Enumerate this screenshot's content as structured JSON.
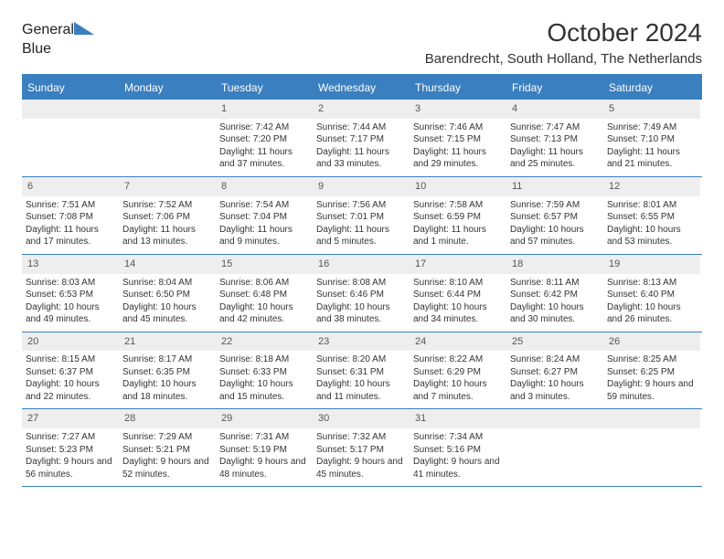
{
  "brand": {
    "general": "General",
    "blue": "Blue"
  },
  "title": {
    "month": "October 2024",
    "location": "Barendrecht, South Holland, The Netherlands"
  },
  "colors": {
    "accent": "#3a7fc0",
    "header_bg": "#3a7fc0",
    "num_bg": "#eeeeee",
    "text": "#333333",
    "brand_gray": "#555555"
  },
  "day_headers": [
    "Sunday",
    "Monday",
    "Tuesday",
    "Wednesday",
    "Thursday",
    "Friday",
    "Saturday"
  ],
  "weeks": [
    [
      {
        "n": "",
        "sr": "",
        "ss": "",
        "dl": ""
      },
      {
        "n": "",
        "sr": "",
        "ss": "",
        "dl": ""
      },
      {
        "n": "1",
        "sr": "Sunrise: 7:42 AM",
        "ss": "Sunset: 7:20 PM",
        "dl": "Daylight: 11 hours and 37 minutes."
      },
      {
        "n": "2",
        "sr": "Sunrise: 7:44 AM",
        "ss": "Sunset: 7:17 PM",
        "dl": "Daylight: 11 hours and 33 minutes."
      },
      {
        "n": "3",
        "sr": "Sunrise: 7:46 AM",
        "ss": "Sunset: 7:15 PM",
        "dl": "Daylight: 11 hours and 29 minutes."
      },
      {
        "n": "4",
        "sr": "Sunrise: 7:47 AM",
        "ss": "Sunset: 7:13 PM",
        "dl": "Daylight: 11 hours and 25 minutes."
      },
      {
        "n": "5",
        "sr": "Sunrise: 7:49 AM",
        "ss": "Sunset: 7:10 PM",
        "dl": "Daylight: 11 hours and 21 minutes."
      }
    ],
    [
      {
        "n": "6",
        "sr": "Sunrise: 7:51 AM",
        "ss": "Sunset: 7:08 PM",
        "dl": "Daylight: 11 hours and 17 minutes."
      },
      {
        "n": "7",
        "sr": "Sunrise: 7:52 AM",
        "ss": "Sunset: 7:06 PM",
        "dl": "Daylight: 11 hours and 13 minutes."
      },
      {
        "n": "8",
        "sr": "Sunrise: 7:54 AM",
        "ss": "Sunset: 7:04 PM",
        "dl": "Daylight: 11 hours and 9 minutes."
      },
      {
        "n": "9",
        "sr": "Sunrise: 7:56 AM",
        "ss": "Sunset: 7:01 PM",
        "dl": "Daylight: 11 hours and 5 minutes."
      },
      {
        "n": "10",
        "sr": "Sunrise: 7:58 AM",
        "ss": "Sunset: 6:59 PM",
        "dl": "Daylight: 11 hours and 1 minute."
      },
      {
        "n": "11",
        "sr": "Sunrise: 7:59 AM",
        "ss": "Sunset: 6:57 PM",
        "dl": "Daylight: 10 hours and 57 minutes."
      },
      {
        "n": "12",
        "sr": "Sunrise: 8:01 AM",
        "ss": "Sunset: 6:55 PM",
        "dl": "Daylight: 10 hours and 53 minutes."
      }
    ],
    [
      {
        "n": "13",
        "sr": "Sunrise: 8:03 AM",
        "ss": "Sunset: 6:53 PM",
        "dl": "Daylight: 10 hours and 49 minutes."
      },
      {
        "n": "14",
        "sr": "Sunrise: 8:04 AM",
        "ss": "Sunset: 6:50 PM",
        "dl": "Daylight: 10 hours and 45 minutes."
      },
      {
        "n": "15",
        "sr": "Sunrise: 8:06 AM",
        "ss": "Sunset: 6:48 PM",
        "dl": "Daylight: 10 hours and 42 minutes."
      },
      {
        "n": "16",
        "sr": "Sunrise: 8:08 AM",
        "ss": "Sunset: 6:46 PM",
        "dl": "Daylight: 10 hours and 38 minutes."
      },
      {
        "n": "17",
        "sr": "Sunrise: 8:10 AM",
        "ss": "Sunset: 6:44 PM",
        "dl": "Daylight: 10 hours and 34 minutes."
      },
      {
        "n": "18",
        "sr": "Sunrise: 8:11 AM",
        "ss": "Sunset: 6:42 PM",
        "dl": "Daylight: 10 hours and 30 minutes."
      },
      {
        "n": "19",
        "sr": "Sunrise: 8:13 AM",
        "ss": "Sunset: 6:40 PM",
        "dl": "Daylight: 10 hours and 26 minutes."
      }
    ],
    [
      {
        "n": "20",
        "sr": "Sunrise: 8:15 AM",
        "ss": "Sunset: 6:37 PM",
        "dl": "Daylight: 10 hours and 22 minutes."
      },
      {
        "n": "21",
        "sr": "Sunrise: 8:17 AM",
        "ss": "Sunset: 6:35 PM",
        "dl": "Daylight: 10 hours and 18 minutes."
      },
      {
        "n": "22",
        "sr": "Sunrise: 8:18 AM",
        "ss": "Sunset: 6:33 PM",
        "dl": "Daylight: 10 hours and 15 minutes."
      },
      {
        "n": "23",
        "sr": "Sunrise: 8:20 AM",
        "ss": "Sunset: 6:31 PM",
        "dl": "Daylight: 10 hours and 11 minutes."
      },
      {
        "n": "24",
        "sr": "Sunrise: 8:22 AM",
        "ss": "Sunset: 6:29 PM",
        "dl": "Daylight: 10 hours and 7 minutes."
      },
      {
        "n": "25",
        "sr": "Sunrise: 8:24 AM",
        "ss": "Sunset: 6:27 PM",
        "dl": "Daylight: 10 hours and 3 minutes."
      },
      {
        "n": "26",
        "sr": "Sunrise: 8:25 AM",
        "ss": "Sunset: 6:25 PM",
        "dl": "Daylight: 9 hours and 59 minutes."
      }
    ],
    [
      {
        "n": "27",
        "sr": "Sunrise: 7:27 AM",
        "ss": "Sunset: 5:23 PM",
        "dl": "Daylight: 9 hours and 56 minutes."
      },
      {
        "n": "28",
        "sr": "Sunrise: 7:29 AM",
        "ss": "Sunset: 5:21 PM",
        "dl": "Daylight: 9 hours and 52 minutes."
      },
      {
        "n": "29",
        "sr": "Sunrise: 7:31 AM",
        "ss": "Sunset: 5:19 PM",
        "dl": "Daylight: 9 hours and 48 minutes."
      },
      {
        "n": "30",
        "sr": "Sunrise: 7:32 AM",
        "ss": "Sunset: 5:17 PM",
        "dl": "Daylight: 9 hours and 45 minutes."
      },
      {
        "n": "31",
        "sr": "Sunrise: 7:34 AM",
        "ss": "Sunset: 5:16 PM",
        "dl": "Daylight: 9 hours and 41 minutes."
      },
      {
        "n": "",
        "sr": "",
        "ss": "",
        "dl": ""
      },
      {
        "n": "",
        "sr": "",
        "ss": "",
        "dl": ""
      }
    ]
  ]
}
